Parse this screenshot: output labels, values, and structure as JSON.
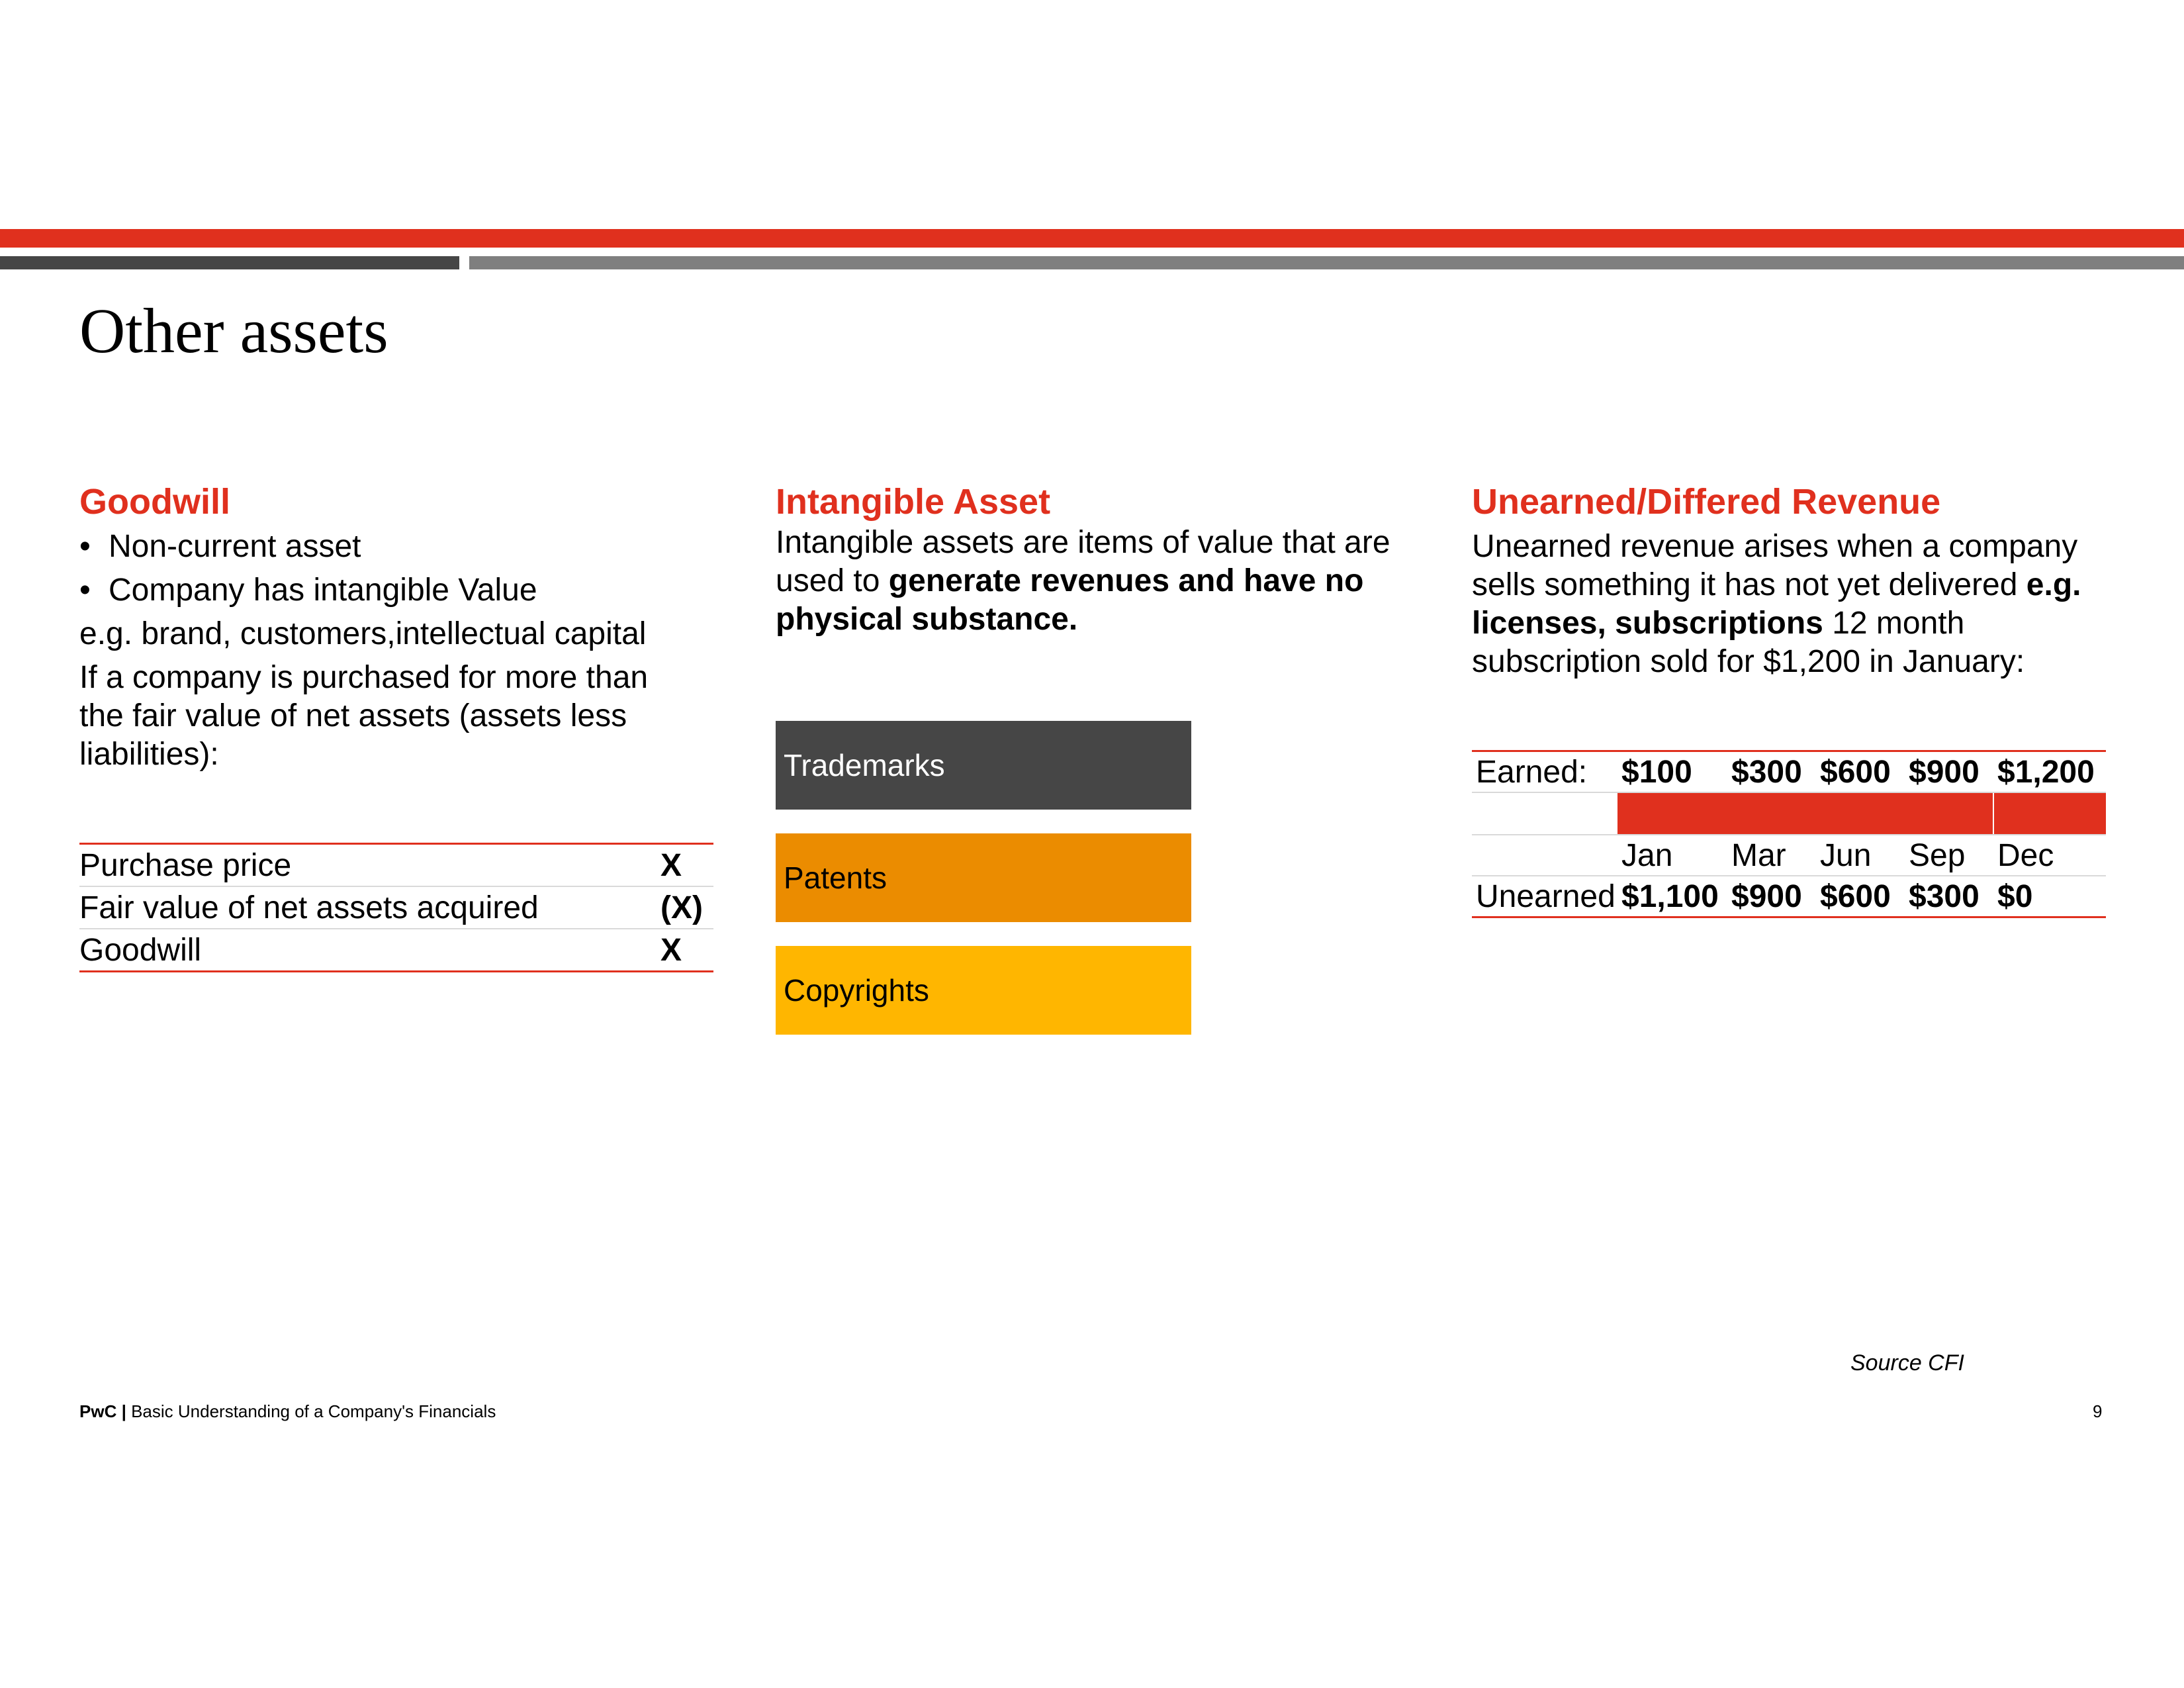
{
  "slide": {
    "title": "Other assets",
    "colors": {
      "accent_red": "#e0301e",
      "dark_grey": "#464646",
      "mid_grey": "#7f7f7f",
      "orange": "#eb8c00",
      "yellow": "#ffb600"
    }
  },
  "goodwill": {
    "heading": "Goodwill",
    "bullets": [
      "Non-current asset",
      "Company has intangible Value"
    ],
    "example": "e.g. brand, customers,intellectual capital",
    "paragraph": "If a company is purchased for more than the fair value of net assets (assets less liabilities):",
    "table": [
      {
        "label": "Purchase price",
        "value": "X"
      },
      {
        "label": "Fair value of net assets acquired",
        "value": "(X)"
      },
      {
        "label": "Goodwill",
        "value": "X"
      }
    ]
  },
  "intangible": {
    "heading": "Intangible Asset",
    "text_plain": "Intangible assets are items of value that are used to ",
    "text_bold": "generate revenues and have no physical substance.",
    "boxes": [
      "Trademarks",
      "Patents",
      "Copyrights"
    ]
  },
  "unearned": {
    "heading": "Unearned/Differed Revenue",
    "text_plain": "Unearned revenue arises when a company sells something it has not yet delivered ",
    "text_bold": "e.g. licenses, subscriptions",
    "text_tail": " 12 month subscription sold for $1,200 in January:",
    "table": {
      "earned_label": "Earned:",
      "earned": [
        "$100",
        "$300",
        "$600",
        "$900",
        "$1,200"
      ],
      "months": [
        "Jan",
        "Mar",
        "Jun",
        "Sep",
        "Dec"
      ],
      "unearned_label": "Unearned",
      "unearned": [
        "$1,100",
        "$900",
        "$600",
        "$300",
        "$0"
      ]
    }
  },
  "footer": {
    "source": "Source CFI",
    "brand": "PwC |",
    "text": "Basic Understanding of a Company's Financials",
    "page": "9"
  }
}
